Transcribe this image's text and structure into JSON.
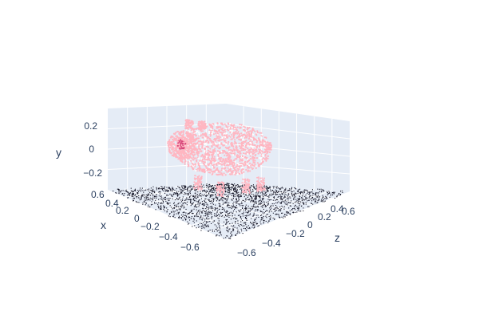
{
  "chart_data": {
    "type": "scatter3d",
    "title": "",
    "axes": {
      "x": {
        "label": "x",
        "ticks": [
          "0.6",
          "0.4",
          "0.2",
          "0",
          "−0.2",
          "−0.4",
          "−0.6"
        ]
      },
      "y": {
        "label": "y",
        "ticks": [
          "0.2",
          "0",
          "−0.2"
        ]
      },
      "z": {
        "label": "z",
        "ticks": [
          "0.6",
          "0.4",
          "0.2",
          "0",
          "−0.2",
          "−0.4",
          "−0.6"
        ]
      }
    },
    "scene_background": "#e5ecf6",
    "grid": true,
    "series": [
      {
        "description": "pig point cloud",
        "color": "#ffb6c1",
        "accent_color": "#d6457a"
      },
      {
        "description": "ground noise points",
        "color": "#111122"
      }
    ]
  }
}
